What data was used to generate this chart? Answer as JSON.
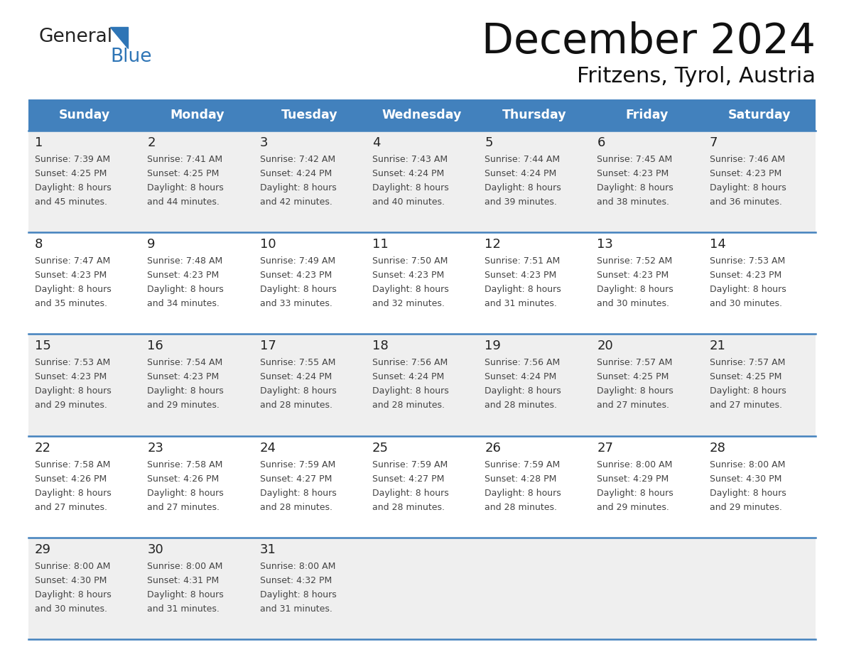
{
  "title": "December 2024",
  "subtitle": "Fritzens, Tyrol, Austria",
  "days_of_week": [
    "Sunday",
    "Monday",
    "Tuesday",
    "Wednesday",
    "Thursday",
    "Friday",
    "Saturday"
  ],
  "header_bg": "#4281BD",
  "header_text_color": "#FFFFFF",
  "cell_bg_even": "#EFEFEF",
  "cell_bg_odd": "#FFFFFF",
  "text_color": "#444444",
  "day_num_color": "#222222",
  "border_color": "#4281BD",
  "line_color": "#4281BD",
  "calendar_data": [
    {
      "day": 1,
      "col": 0,
      "row": 0,
      "sunrise": "7:39 AM",
      "sunset": "4:25 PM",
      "daylight": "8 hours and 45 minutes."
    },
    {
      "day": 2,
      "col": 1,
      "row": 0,
      "sunrise": "7:41 AM",
      "sunset": "4:25 PM",
      "daylight": "8 hours and 44 minutes."
    },
    {
      "day": 3,
      "col": 2,
      "row": 0,
      "sunrise": "7:42 AM",
      "sunset": "4:24 PM",
      "daylight": "8 hours and 42 minutes."
    },
    {
      "day": 4,
      "col": 3,
      "row": 0,
      "sunrise": "7:43 AM",
      "sunset": "4:24 PM",
      "daylight": "8 hours and 40 minutes."
    },
    {
      "day": 5,
      "col": 4,
      "row": 0,
      "sunrise": "7:44 AM",
      "sunset": "4:24 PM",
      "daylight": "8 hours and 39 minutes."
    },
    {
      "day": 6,
      "col": 5,
      "row": 0,
      "sunrise": "7:45 AM",
      "sunset": "4:23 PM",
      "daylight": "8 hours and 38 minutes."
    },
    {
      "day": 7,
      "col": 6,
      "row": 0,
      "sunrise": "7:46 AM",
      "sunset": "4:23 PM",
      "daylight": "8 hours and 36 minutes."
    },
    {
      "day": 8,
      "col": 0,
      "row": 1,
      "sunrise": "7:47 AM",
      "sunset": "4:23 PM",
      "daylight": "8 hours and 35 minutes."
    },
    {
      "day": 9,
      "col": 1,
      "row": 1,
      "sunrise": "7:48 AM",
      "sunset": "4:23 PM",
      "daylight": "8 hours and 34 minutes."
    },
    {
      "day": 10,
      "col": 2,
      "row": 1,
      "sunrise": "7:49 AM",
      "sunset": "4:23 PM",
      "daylight": "8 hours and 33 minutes."
    },
    {
      "day": 11,
      "col": 3,
      "row": 1,
      "sunrise": "7:50 AM",
      "sunset": "4:23 PM",
      "daylight": "8 hours and 32 minutes."
    },
    {
      "day": 12,
      "col": 4,
      "row": 1,
      "sunrise": "7:51 AM",
      "sunset": "4:23 PM",
      "daylight": "8 hours and 31 minutes."
    },
    {
      "day": 13,
      "col": 5,
      "row": 1,
      "sunrise": "7:52 AM",
      "sunset": "4:23 PM",
      "daylight": "8 hours and 30 minutes."
    },
    {
      "day": 14,
      "col": 6,
      "row": 1,
      "sunrise": "7:53 AM",
      "sunset": "4:23 PM",
      "daylight": "8 hours and 30 minutes."
    },
    {
      "day": 15,
      "col": 0,
      "row": 2,
      "sunrise": "7:53 AM",
      "sunset": "4:23 PM",
      "daylight": "8 hours and 29 minutes."
    },
    {
      "day": 16,
      "col": 1,
      "row": 2,
      "sunrise": "7:54 AM",
      "sunset": "4:23 PM",
      "daylight": "8 hours and 29 minutes."
    },
    {
      "day": 17,
      "col": 2,
      "row": 2,
      "sunrise": "7:55 AM",
      "sunset": "4:24 PM",
      "daylight": "8 hours and 28 minutes."
    },
    {
      "day": 18,
      "col": 3,
      "row": 2,
      "sunrise": "7:56 AM",
      "sunset": "4:24 PM",
      "daylight": "8 hours and 28 minutes."
    },
    {
      "day": 19,
      "col": 4,
      "row": 2,
      "sunrise": "7:56 AM",
      "sunset": "4:24 PM",
      "daylight": "8 hours and 28 minutes."
    },
    {
      "day": 20,
      "col": 5,
      "row": 2,
      "sunrise": "7:57 AM",
      "sunset": "4:25 PM",
      "daylight": "8 hours and 27 minutes."
    },
    {
      "day": 21,
      "col": 6,
      "row": 2,
      "sunrise": "7:57 AM",
      "sunset": "4:25 PM",
      "daylight": "8 hours and 27 minutes."
    },
    {
      "day": 22,
      "col": 0,
      "row": 3,
      "sunrise": "7:58 AM",
      "sunset": "4:26 PM",
      "daylight": "8 hours and 27 minutes."
    },
    {
      "day": 23,
      "col": 1,
      "row": 3,
      "sunrise": "7:58 AM",
      "sunset": "4:26 PM",
      "daylight": "8 hours and 27 minutes."
    },
    {
      "day": 24,
      "col": 2,
      "row": 3,
      "sunrise": "7:59 AM",
      "sunset": "4:27 PM",
      "daylight": "8 hours and 28 minutes."
    },
    {
      "day": 25,
      "col": 3,
      "row": 3,
      "sunrise": "7:59 AM",
      "sunset": "4:27 PM",
      "daylight": "8 hours and 28 minutes."
    },
    {
      "day": 26,
      "col": 4,
      "row": 3,
      "sunrise": "7:59 AM",
      "sunset": "4:28 PM",
      "daylight": "8 hours and 28 minutes."
    },
    {
      "day": 27,
      "col": 5,
      "row": 3,
      "sunrise": "8:00 AM",
      "sunset": "4:29 PM",
      "daylight": "8 hours and 29 minutes."
    },
    {
      "day": 28,
      "col": 6,
      "row": 3,
      "sunrise": "8:00 AM",
      "sunset": "4:30 PM",
      "daylight": "8 hours and 29 minutes."
    },
    {
      "day": 29,
      "col": 0,
      "row": 4,
      "sunrise": "8:00 AM",
      "sunset": "4:30 PM",
      "daylight": "8 hours and 30 minutes."
    },
    {
      "day": 30,
      "col": 1,
      "row": 4,
      "sunrise": "8:00 AM",
      "sunset": "4:31 PM",
      "daylight": "8 hours and 31 minutes."
    },
    {
      "day": 31,
      "col": 2,
      "row": 4,
      "sunrise": "8:00 AM",
      "sunset": "4:32 PM",
      "daylight": "8 hours and 31 minutes."
    }
  ],
  "num_rows": 5,
  "logo_text_general": "General",
  "logo_text_blue": "Blue",
  "logo_color_general": "#222222",
  "logo_color_blue": "#2E75B6",
  "logo_triangle_color": "#2E75B6"
}
